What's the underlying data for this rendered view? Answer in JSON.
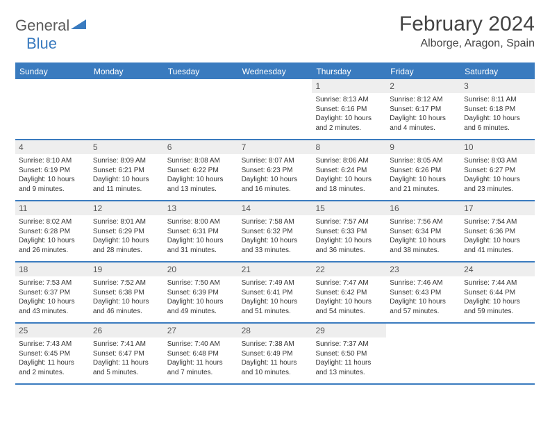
{
  "logo": {
    "text1": "General",
    "text2": "Blue"
  },
  "title": "February 2024",
  "location": "Alborge, Aragon, Spain",
  "colors": {
    "accent": "#3a7bbf",
    "header_text": "#ffffff",
    "daynum_bg": "#eeeeee",
    "text": "#333333"
  },
  "weekdays": [
    "Sunday",
    "Monday",
    "Tuesday",
    "Wednesday",
    "Thursday",
    "Friday",
    "Saturday"
  ],
  "weeks": [
    [
      {
        "empty": true
      },
      {
        "empty": true
      },
      {
        "empty": true
      },
      {
        "empty": true
      },
      {
        "num": "1",
        "sunrise": "Sunrise: 8:13 AM",
        "sunset": "Sunset: 6:16 PM",
        "daylight": "Daylight: 10 hours and 2 minutes."
      },
      {
        "num": "2",
        "sunrise": "Sunrise: 8:12 AM",
        "sunset": "Sunset: 6:17 PM",
        "daylight": "Daylight: 10 hours and 4 minutes."
      },
      {
        "num": "3",
        "sunrise": "Sunrise: 8:11 AM",
        "sunset": "Sunset: 6:18 PM",
        "daylight": "Daylight: 10 hours and 6 minutes."
      }
    ],
    [
      {
        "num": "4",
        "sunrise": "Sunrise: 8:10 AM",
        "sunset": "Sunset: 6:19 PM",
        "daylight": "Daylight: 10 hours and 9 minutes."
      },
      {
        "num": "5",
        "sunrise": "Sunrise: 8:09 AM",
        "sunset": "Sunset: 6:21 PM",
        "daylight": "Daylight: 10 hours and 11 minutes."
      },
      {
        "num": "6",
        "sunrise": "Sunrise: 8:08 AM",
        "sunset": "Sunset: 6:22 PM",
        "daylight": "Daylight: 10 hours and 13 minutes."
      },
      {
        "num": "7",
        "sunrise": "Sunrise: 8:07 AM",
        "sunset": "Sunset: 6:23 PM",
        "daylight": "Daylight: 10 hours and 16 minutes."
      },
      {
        "num": "8",
        "sunrise": "Sunrise: 8:06 AM",
        "sunset": "Sunset: 6:24 PM",
        "daylight": "Daylight: 10 hours and 18 minutes."
      },
      {
        "num": "9",
        "sunrise": "Sunrise: 8:05 AM",
        "sunset": "Sunset: 6:26 PM",
        "daylight": "Daylight: 10 hours and 21 minutes."
      },
      {
        "num": "10",
        "sunrise": "Sunrise: 8:03 AM",
        "sunset": "Sunset: 6:27 PM",
        "daylight": "Daylight: 10 hours and 23 minutes."
      }
    ],
    [
      {
        "num": "11",
        "sunrise": "Sunrise: 8:02 AM",
        "sunset": "Sunset: 6:28 PM",
        "daylight": "Daylight: 10 hours and 26 minutes."
      },
      {
        "num": "12",
        "sunrise": "Sunrise: 8:01 AM",
        "sunset": "Sunset: 6:29 PM",
        "daylight": "Daylight: 10 hours and 28 minutes."
      },
      {
        "num": "13",
        "sunrise": "Sunrise: 8:00 AM",
        "sunset": "Sunset: 6:31 PM",
        "daylight": "Daylight: 10 hours and 31 minutes."
      },
      {
        "num": "14",
        "sunrise": "Sunrise: 7:58 AM",
        "sunset": "Sunset: 6:32 PM",
        "daylight": "Daylight: 10 hours and 33 minutes."
      },
      {
        "num": "15",
        "sunrise": "Sunrise: 7:57 AM",
        "sunset": "Sunset: 6:33 PM",
        "daylight": "Daylight: 10 hours and 36 minutes."
      },
      {
        "num": "16",
        "sunrise": "Sunrise: 7:56 AM",
        "sunset": "Sunset: 6:34 PM",
        "daylight": "Daylight: 10 hours and 38 minutes."
      },
      {
        "num": "17",
        "sunrise": "Sunrise: 7:54 AM",
        "sunset": "Sunset: 6:36 PM",
        "daylight": "Daylight: 10 hours and 41 minutes."
      }
    ],
    [
      {
        "num": "18",
        "sunrise": "Sunrise: 7:53 AM",
        "sunset": "Sunset: 6:37 PM",
        "daylight": "Daylight: 10 hours and 43 minutes."
      },
      {
        "num": "19",
        "sunrise": "Sunrise: 7:52 AM",
        "sunset": "Sunset: 6:38 PM",
        "daylight": "Daylight: 10 hours and 46 minutes."
      },
      {
        "num": "20",
        "sunrise": "Sunrise: 7:50 AM",
        "sunset": "Sunset: 6:39 PM",
        "daylight": "Daylight: 10 hours and 49 minutes."
      },
      {
        "num": "21",
        "sunrise": "Sunrise: 7:49 AM",
        "sunset": "Sunset: 6:41 PM",
        "daylight": "Daylight: 10 hours and 51 minutes."
      },
      {
        "num": "22",
        "sunrise": "Sunrise: 7:47 AM",
        "sunset": "Sunset: 6:42 PM",
        "daylight": "Daylight: 10 hours and 54 minutes."
      },
      {
        "num": "23",
        "sunrise": "Sunrise: 7:46 AM",
        "sunset": "Sunset: 6:43 PM",
        "daylight": "Daylight: 10 hours and 57 minutes."
      },
      {
        "num": "24",
        "sunrise": "Sunrise: 7:44 AM",
        "sunset": "Sunset: 6:44 PM",
        "daylight": "Daylight: 10 hours and 59 minutes."
      }
    ],
    [
      {
        "num": "25",
        "sunrise": "Sunrise: 7:43 AM",
        "sunset": "Sunset: 6:45 PM",
        "daylight": "Daylight: 11 hours and 2 minutes."
      },
      {
        "num": "26",
        "sunrise": "Sunrise: 7:41 AM",
        "sunset": "Sunset: 6:47 PM",
        "daylight": "Daylight: 11 hours and 5 minutes."
      },
      {
        "num": "27",
        "sunrise": "Sunrise: 7:40 AM",
        "sunset": "Sunset: 6:48 PM",
        "daylight": "Daylight: 11 hours and 7 minutes."
      },
      {
        "num": "28",
        "sunrise": "Sunrise: 7:38 AM",
        "sunset": "Sunset: 6:49 PM",
        "daylight": "Daylight: 11 hours and 10 minutes."
      },
      {
        "num": "29",
        "sunrise": "Sunrise: 7:37 AM",
        "sunset": "Sunset: 6:50 PM",
        "daylight": "Daylight: 11 hours and 13 minutes."
      },
      {
        "empty": true
      },
      {
        "empty": true
      }
    ]
  ]
}
